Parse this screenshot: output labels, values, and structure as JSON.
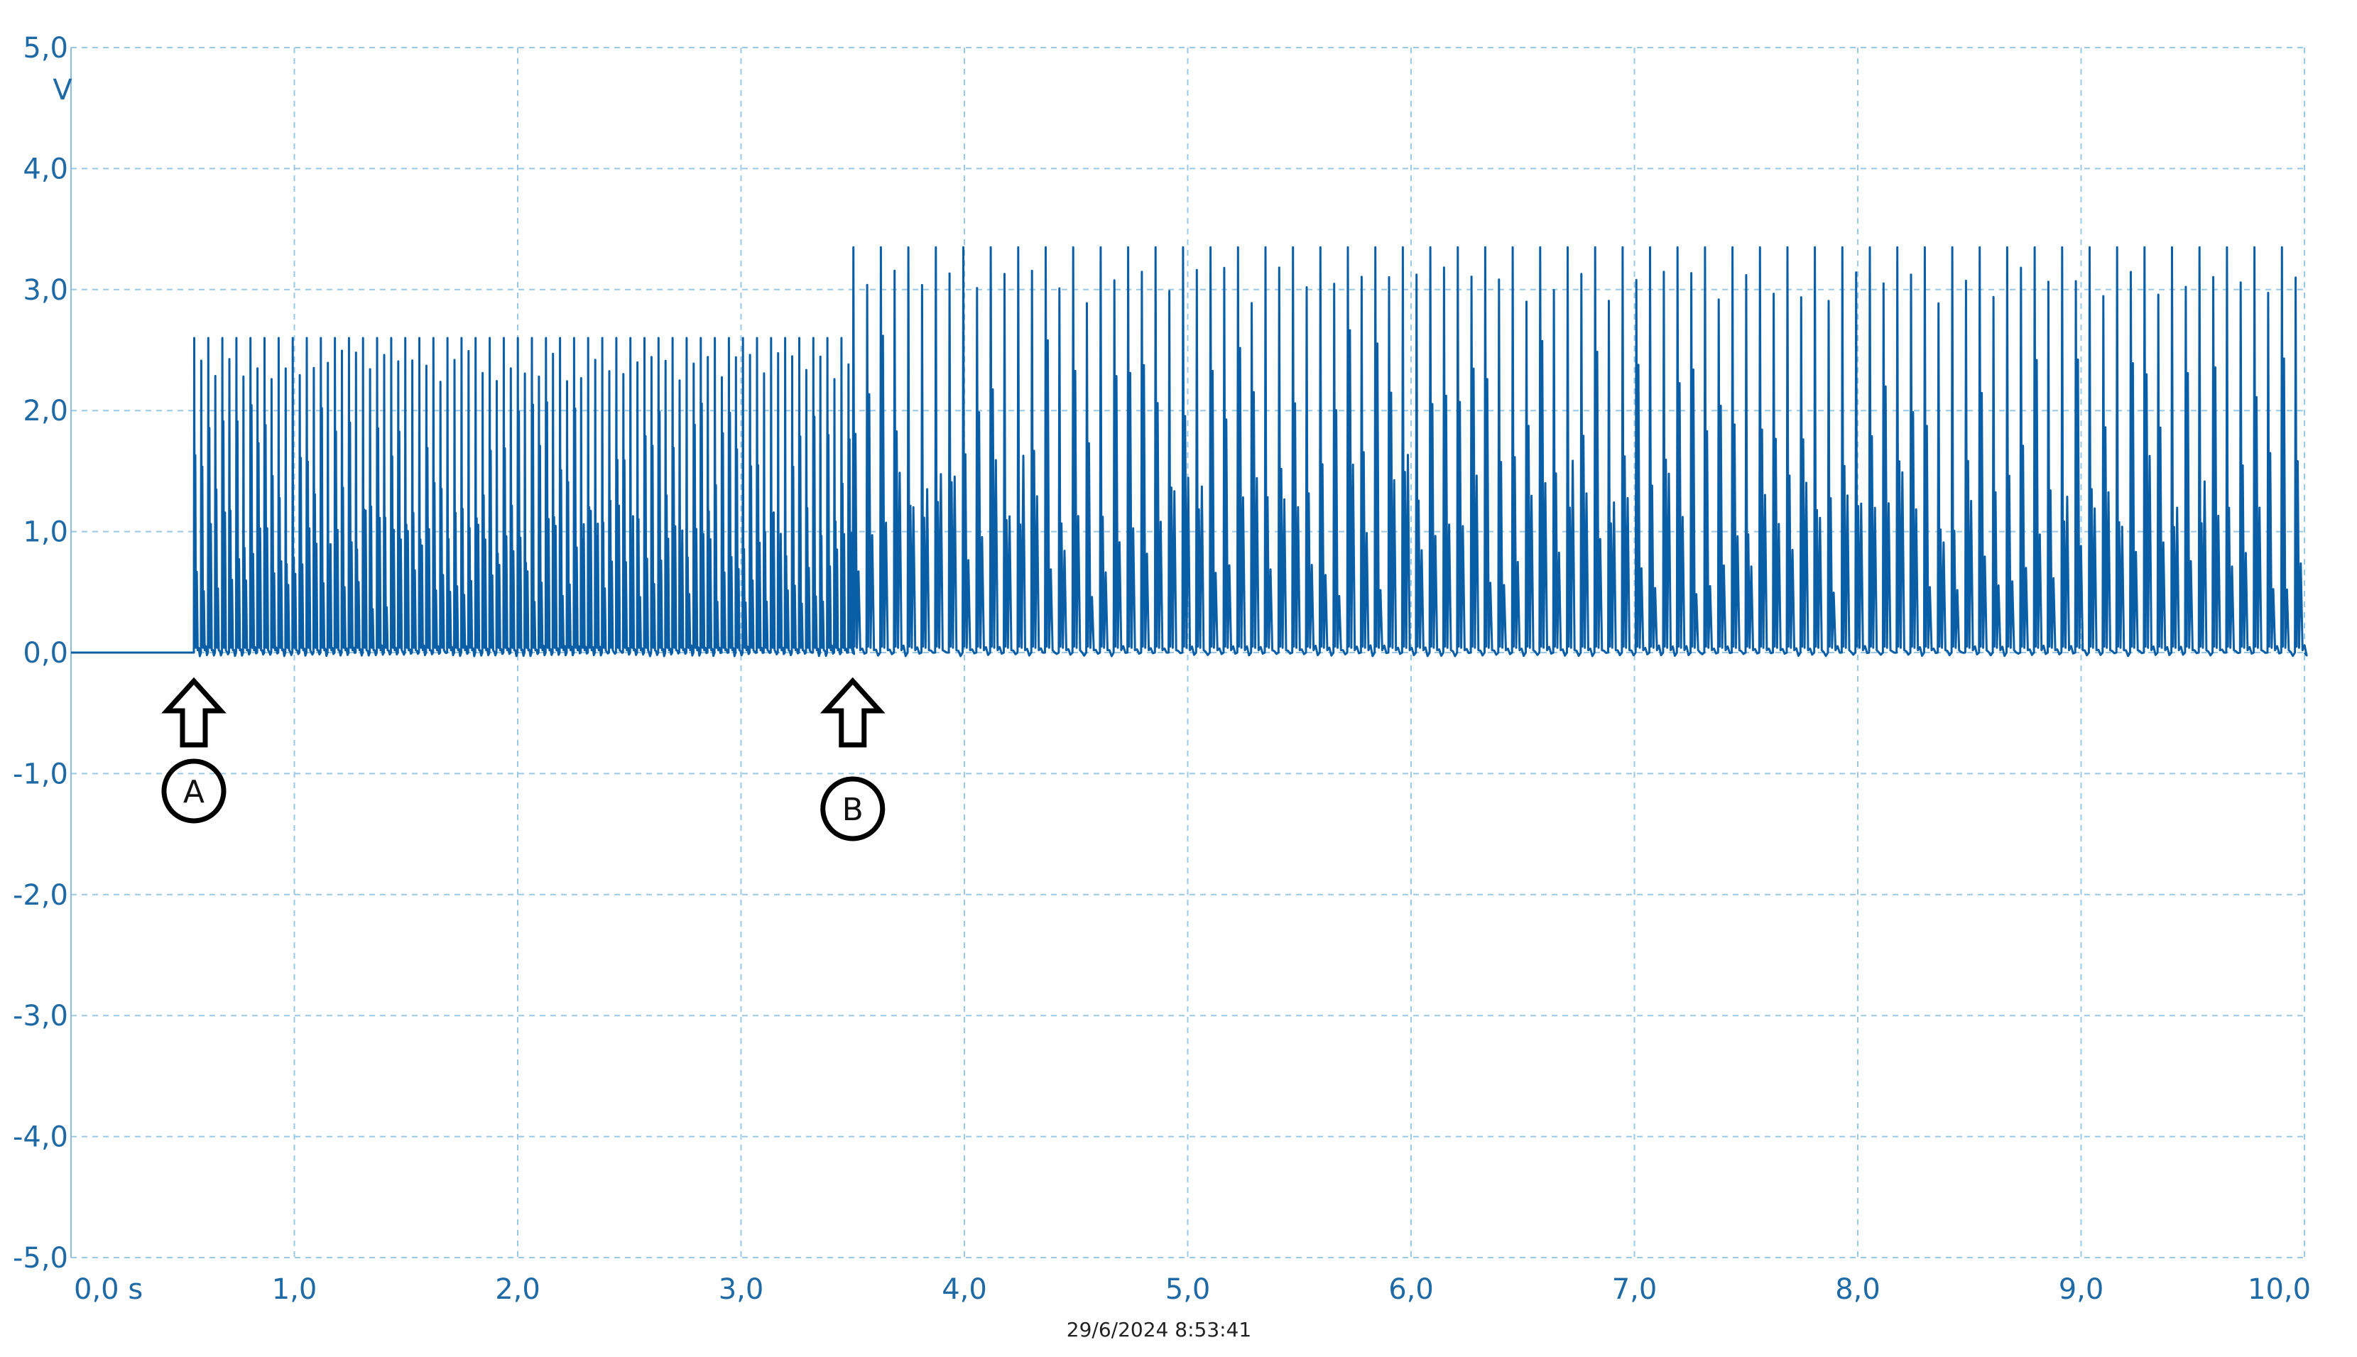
{
  "chart_data": {
    "type": "line",
    "xlabel": "s",
    "ylabel": "V",
    "xlim": [
      0,
      10
    ],
    "ylim": [
      -5,
      5
    ],
    "grid": true,
    "x_ticks": [
      "0,0 s",
      "1,0",
      "2,0",
      "3,0",
      "4,0",
      "5,0",
      "6,0",
      "7,0",
      "8,0",
      "9,0",
      "10,0"
    ],
    "y_ticks": [
      "5,0",
      "4,0",
      "3,0",
      "2,0",
      "1,0",
      "0,0",
      "-1,0",
      "-2,0",
      "-3,0",
      "-4,0",
      "-5,0"
    ],
    "y_unit_label": "V",
    "timestamp": "29/6/2024 8:53:41",
    "series": [
      {
        "color": "#0a5ea6",
        "segments": [
          {
            "x_start": 0.0,
            "x_end": 0.55,
            "pattern": "flat",
            "baseline": 0.0
          },
          {
            "x_start": 0.55,
            "x_end": 3.5,
            "pattern": "pulse-train",
            "baseline": 0.0,
            "peak": 2.6,
            "pulse_period": 0.0315
          },
          {
            "x_start": 3.5,
            "x_end": 10.0,
            "pattern": "pulse-train",
            "baseline": 0.0,
            "peak": 3.35,
            "pulse_period": 0.0615
          }
        ]
      }
    ],
    "annotations": [
      {
        "label": "A",
        "x": 0.55,
        "type": "up-arrow"
      },
      {
        "label": "B",
        "x": 3.5,
        "type": "up-arrow"
      }
    ]
  }
}
